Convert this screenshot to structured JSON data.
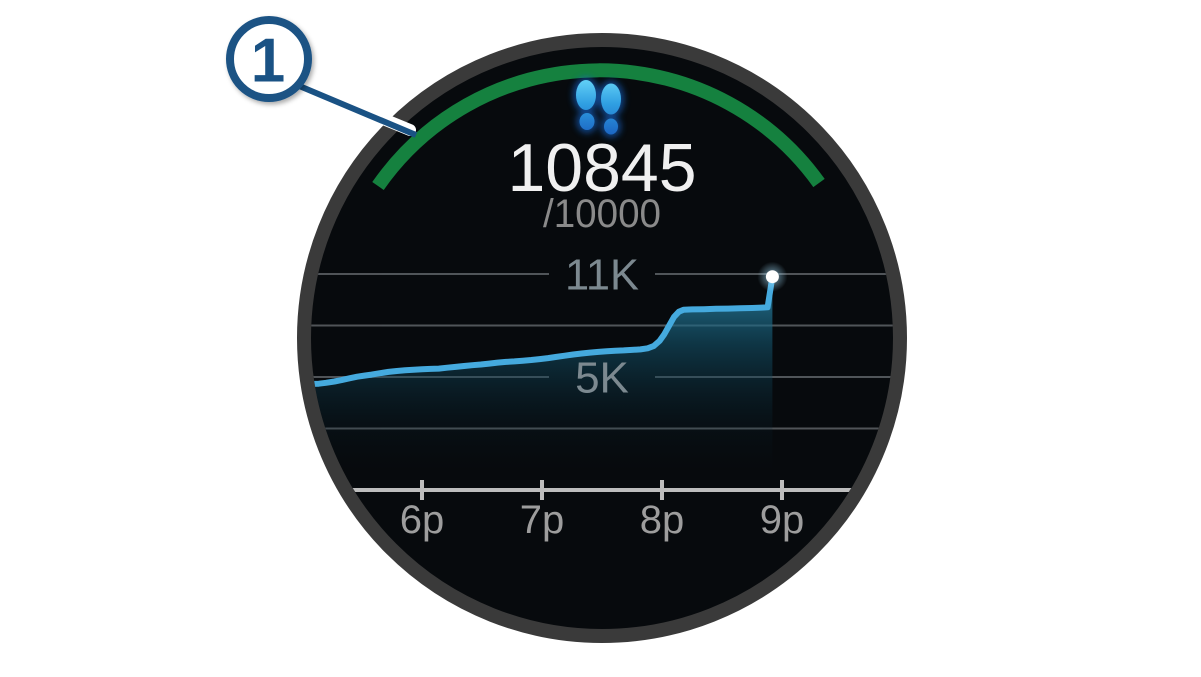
{
  "callout": {
    "label": "1",
    "color": "#1a5284"
  },
  "watch": {
    "steps_value": "10845",
    "steps_goal": "/10000",
    "icon": "footsteps-icon"
  },
  "colors": {
    "arc_green": "#15813f",
    "line_blue": "#45aade",
    "ring_gray": "#3a3a3a",
    "face_black": "#070a0d",
    "grid_gray": "#8d9398",
    "axis_gray": "#bdbdbd",
    "value_white": "#f0f0f0",
    "goal_gray": "#8a8a8a",
    "tick_label_gray": "#9d9d9d",
    "y_label_gray": "#7c8990",
    "dot_white": "#ffffff"
  },
  "chart_data": {
    "type": "area",
    "title": "",
    "xlabel": "",
    "ylabel": "",
    "x_tick_labels": [
      "6p",
      "7p",
      "8p",
      "9p"
    ],
    "x_tick_hours": [
      18,
      19,
      20,
      21
    ],
    "x_range_hours": [
      17.0,
      21.7
    ],
    "y_gridline_values": [
      11000,
      8000,
      5000,
      2000
    ],
    "y_gridline_labels": [
      "11K",
      "",
      "5K",
      ""
    ],
    "current_value": 10845,
    "goal_value": 10000,
    "series": [
      {
        "name": "steps",
        "points": [
          [
            17.02,
            4580
          ],
          [
            17.08,
            4600
          ],
          [
            17.14,
            4610
          ],
          [
            17.2,
            4660
          ],
          [
            17.27,
            4740
          ],
          [
            17.33,
            4820
          ],
          [
            17.4,
            4930
          ],
          [
            17.46,
            5020
          ],
          [
            17.52,
            5080
          ],
          [
            17.58,
            5140
          ],
          [
            17.65,
            5220
          ],
          [
            17.72,
            5300
          ],
          [
            17.79,
            5350
          ],
          [
            17.86,
            5390
          ],
          [
            17.93,
            5420
          ],
          [
            18.0,
            5450
          ],
          [
            18.07,
            5470
          ],
          [
            18.14,
            5490
          ],
          [
            18.21,
            5540
          ],
          [
            18.28,
            5590
          ],
          [
            18.35,
            5640
          ],
          [
            18.42,
            5690
          ],
          [
            18.49,
            5730
          ],
          [
            18.56,
            5780
          ],
          [
            18.63,
            5840
          ],
          [
            18.7,
            5880
          ],
          [
            18.77,
            5910
          ],
          [
            18.84,
            5950
          ],
          [
            18.91,
            5990
          ],
          [
            18.98,
            6040
          ],
          [
            19.05,
            6100
          ],
          [
            19.12,
            6170
          ],
          [
            19.19,
            6240
          ],
          [
            19.26,
            6310
          ],
          [
            19.33,
            6370
          ],
          [
            19.4,
            6420
          ],
          [
            19.47,
            6460
          ],
          [
            19.54,
            6500
          ],
          [
            19.61,
            6530
          ],
          [
            19.68,
            6550
          ],
          [
            19.75,
            6580
          ],
          [
            19.82,
            6610
          ],
          [
            19.88,
            6670
          ],
          [
            19.93,
            6800
          ],
          [
            19.98,
            7100
          ],
          [
            20.02,
            7500
          ],
          [
            20.06,
            8000
          ],
          [
            20.1,
            8500
          ],
          [
            20.14,
            8800
          ],
          [
            20.18,
            8920
          ],
          [
            20.25,
            8940
          ],
          [
            20.35,
            8950
          ],
          [
            20.45,
            8970
          ],
          [
            20.55,
            8985
          ],
          [
            20.65,
            9000
          ],
          [
            20.75,
            9020
          ],
          [
            20.83,
            9040
          ],
          [
            20.88,
            9060
          ],
          [
            20.92,
            10845
          ]
        ]
      }
    ]
  }
}
